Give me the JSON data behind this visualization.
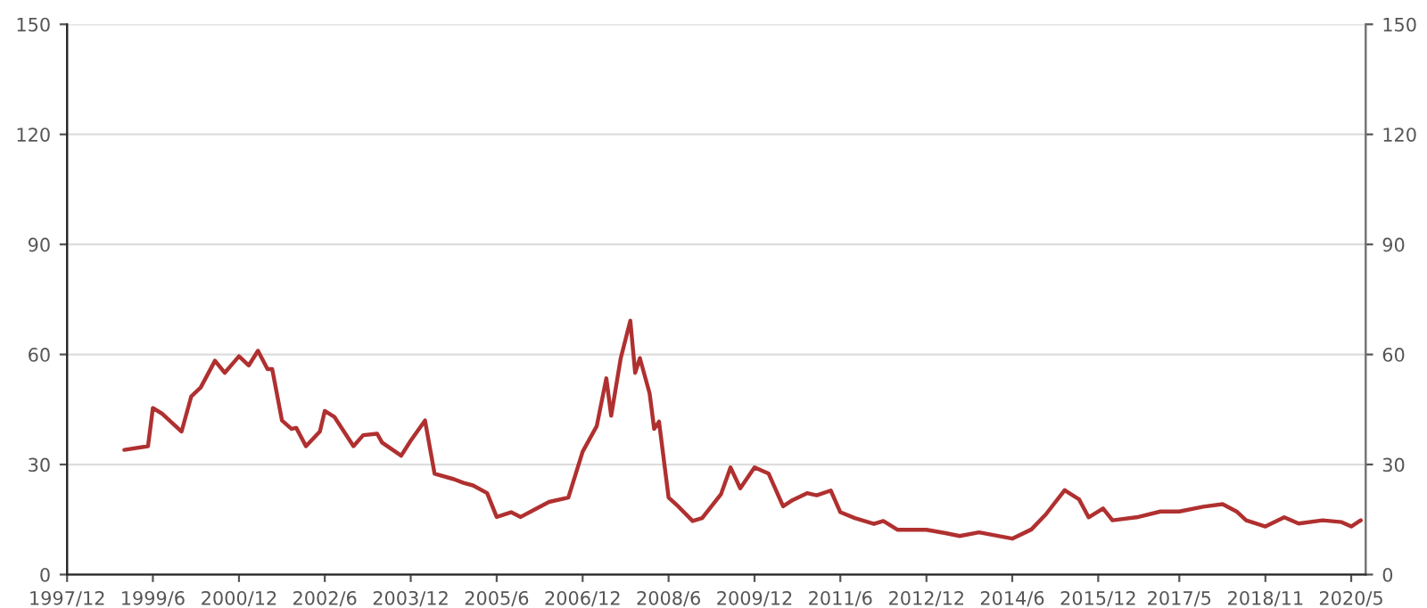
{
  "chart_data": {
    "type": "line",
    "x": [
      "1998-12",
      "1999-05",
      "1999-06",
      "1999-08",
      "1999-12",
      "2000-02",
      "2000-04",
      "2000-07",
      "2000-09",
      "2000-12",
      "2001-02",
      "2001-04",
      "2001-06",
      "2001-07",
      "2001-09",
      "2001-11",
      "2001-12",
      "2002-02",
      "2002-05",
      "2002-06",
      "2002-08",
      "2002-12",
      "2003-02",
      "2003-05",
      "2003-06",
      "2003-10",
      "2003-12",
      "2004-03",
      "2004-05",
      "2004-09",
      "2004-11",
      "2005-01",
      "2005-04",
      "2005-06",
      "2005-09",
      "2005-11",
      "2006-02",
      "2006-05",
      "2006-09",
      "2006-12",
      "2007-03",
      "2007-05",
      "2007-06",
      "2007-08",
      "2007-10",
      "2007-11",
      "2007-12",
      "2008-02",
      "2008-03",
      "2008-04",
      "2008-06",
      "2008-08",
      "2008-11",
      "2009-01",
      "2009-05",
      "2009-07",
      "2009-09",
      "2009-12",
      "2010-03",
      "2010-06",
      "2010-08",
      "2010-11",
      "2011-01",
      "2011-04",
      "2011-06",
      "2011-09",
      "2012-01",
      "2012-03",
      "2012-06",
      "2012-10",
      "2012-12",
      "2013-04",
      "2013-07",
      "2013-11",
      "2014-06",
      "2014-10",
      "2015-01",
      "2015-05",
      "2015-08",
      "2015-10",
      "2016-01",
      "2016-03",
      "2016-08",
      "2017-01",
      "2017-05",
      "2017-10",
      "2018-02",
      "2018-05",
      "2018-07",
      "2018-11",
      "2019-03",
      "2019-06",
      "2019-11",
      "2020-03",
      "2020-05",
      "2020-07"
    ],
    "series": [
      {
        "color": "#b03030",
        "values": [
          34,
          35,
          45.4,
          43.8,
          39,
          48.6,
          51,
          58.3,
          55,
          59.5,
          57,
          61,
          56,
          56,
          42,
          39.7,
          40,
          35,
          39,
          44.6,
          43,
          35,
          38,
          38.4,
          36,
          32.4,
          36.5,
          42,
          27.5,
          26,
          25,
          24.3,
          22.2,
          15.7,
          17,
          15.7,
          17.8,
          19.8,
          21,
          33.5,
          40.5,
          53.5,
          43.3,
          59,
          69.2,
          55,
          59,
          49.4,
          39.7,
          41.7,
          21,
          18.6,
          14.6,
          15.4,
          21.9,
          29.2,
          23.5,
          29.2,
          27.5,
          18.6,
          20.3,
          22.2,
          21.6,
          22.9,
          17,
          15.4,
          13.8,
          14.6,
          12.2,
          12.2,
          12.2,
          11.3,
          10.5,
          11.5,
          9.8,
          12.3,
          16.4,
          23,
          20.5,
          15.6,
          18,
          14.8,
          15.6,
          17.2,
          17.2,
          18.5,
          19.2,
          17.2,
          14.8,
          13.1,
          15.6,
          13.9,
          14.8,
          14.3,
          13.1,
          14.8
        ]
      }
    ],
    "xlim": [
      "1997-12",
      "2020-08"
    ],
    "xticks": [
      {
        "value": "1997-12",
        "label": "1997/12"
      },
      {
        "value": "1999-06",
        "label": "1999/6"
      },
      {
        "value": "2000-12",
        "label": "2000/12"
      },
      {
        "value": "2002-06",
        "label": "2002/6"
      },
      {
        "value": "2003-12",
        "label": "2003/12"
      },
      {
        "value": "2005-06",
        "label": "2005/6"
      },
      {
        "value": "2006-12",
        "label": "2006/12"
      },
      {
        "value": "2008-06",
        "label": "2008/6"
      },
      {
        "value": "2009-12",
        "label": "2009/12"
      },
      {
        "value": "2011-06",
        "label": "2011/6"
      },
      {
        "value": "2012-12",
        "label": "2012/12"
      },
      {
        "value": "2014-06",
        "label": "2014/6"
      },
      {
        "value": "2015-12",
        "label": "2015/12"
      },
      {
        "value": "2017-05",
        "label": "2017/5"
      },
      {
        "value": "2018-11",
        "label": "2018/11"
      },
      {
        "value": "2020-05",
        "label": "2020/5"
      }
    ],
    "ylim": [
      0,
      150
    ],
    "yticks": [
      0,
      30,
      60,
      90,
      120,
      150
    ],
    "y2lim": [
      0,
      150
    ],
    "y2ticks": [
      0,
      30,
      60,
      90,
      120,
      150
    ],
    "grid": "y",
    "line_style": "solid"
  }
}
